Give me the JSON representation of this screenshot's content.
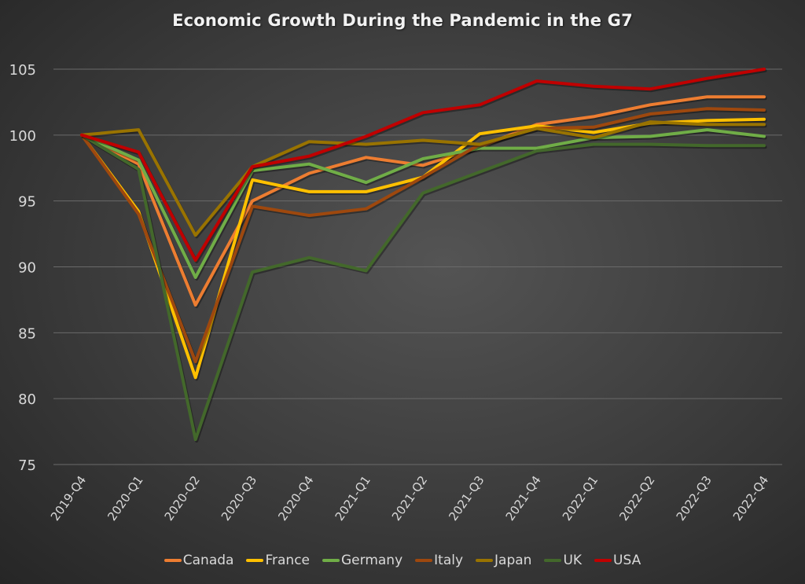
{
  "chart_data": {
    "type": "line",
    "title": "Economic Growth During the Pandemic in the G7",
    "xlabel": "",
    "ylabel": "",
    "categories": [
      "2019-Q4",
      "2020-Q1",
      "2020-Q2",
      "2020-Q3",
      "2020-Q4",
      "2021-Q1",
      "2021-Q2",
      "2021-Q3",
      "2021-Q4",
      "2022-Q1",
      "2022-Q2",
      "2022-Q3",
      "2022-Q4"
    ],
    "ylim": [
      75,
      105
    ],
    "yticks": [
      75,
      80,
      85,
      90,
      95,
      100,
      105
    ],
    "grid": true,
    "legend_position": "bottom",
    "series": [
      {
        "name": "Canada",
        "color": "#ED7D31",
        "values": [
          100,
          97.8,
          87.1,
          95.0,
          97.1,
          98.3,
          97.7,
          99.1,
          100.8,
          101.4,
          102.3,
          102.9,
          102.9
        ]
      },
      {
        "name": "France",
        "color": "#FFC000",
        "values": [
          100,
          94.2,
          81.6,
          96.6,
          95.7,
          95.7,
          96.8,
          100.1,
          100.7,
          100.2,
          100.9,
          101.1,
          101.2
        ]
      },
      {
        "name": "Germany",
        "color": "#70AD47",
        "values": [
          100,
          98.1,
          89.2,
          97.3,
          97.8,
          96.4,
          98.2,
          99.0,
          99.0,
          99.8,
          99.9,
          100.4,
          99.9
        ]
      },
      {
        "name": "Italy",
        "color": "#9E480E",
        "values": [
          100,
          94.0,
          82.8,
          94.6,
          93.9,
          94.4,
          96.8,
          99.3,
          100.5,
          100.6,
          101.6,
          102.0,
          101.9
        ]
      },
      {
        "name": "Japan",
        "color": "#997300",
        "values": [
          100,
          100.4,
          92.4,
          97.6,
          99.5,
          99.3,
          99.6,
          99.3,
          100.5,
          99.8,
          101.0,
          100.8,
          100.8
        ]
      },
      {
        "name": "UK",
        "color": "#43682B",
        "values": [
          100,
          97.4,
          76.9,
          89.6,
          90.7,
          89.7,
          95.6,
          97.2,
          98.8,
          99.3,
          99.3,
          99.2,
          99.2
        ]
      },
      {
        "name": "USA",
        "color": "#C00000",
        "values": [
          100,
          98.7,
          90.5,
          97.6,
          98.4,
          99.9,
          101.7,
          102.3,
          104.1,
          103.7,
          103.5,
          104.3,
          105.0
        ]
      }
    ]
  }
}
